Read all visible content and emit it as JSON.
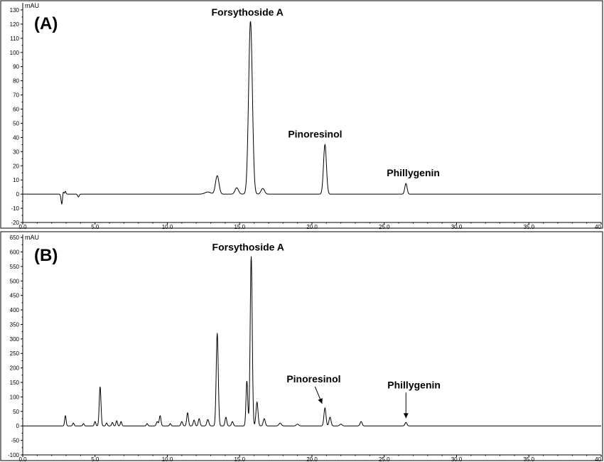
{
  "chart_data": [
    {
      "type": "line",
      "panel_label": "(A)",
      "ylabel": "mAU",
      "xlim": [
        0,
        40
      ],
      "ylim": [
        -20,
        135
      ],
      "yticks": [
        -20,
        -10,
        0,
        10,
        20,
        30,
        40,
        50,
        60,
        70,
        80,
        90,
        100,
        110,
        120,
        130
      ],
      "xticks": [
        0,
        5,
        10,
        15,
        20,
        25,
        30,
        35,
        40
      ],
      "xtick_labels": [
        "0.0",
        "5.0",
        "10.0",
        "15.0",
        "20.0",
        "25.0",
        "30.0",
        "35.0",
        "40"
      ],
      "baseline": 0,
      "peaks": [
        {
          "x": 2.7,
          "y": -7,
          "w": 0.05
        },
        {
          "x": 2.8,
          "y": 2,
          "w": 0.04
        },
        {
          "x": 2.95,
          "y": 2,
          "w": 0.04
        },
        {
          "x": 3.85,
          "y": -2,
          "w": 0.05
        },
        {
          "x": 12.8,
          "y": 1.5,
          "w": 0.2
        },
        {
          "x": 13.45,
          "y": 13,
          "w": 0.12
        },
        {
          "x": 14.8,
          "y": 4.5,
          "w": 0.12
        },
        {
          "x": 15.75,
          "y": 122,
          "w": 0.13
        },
        {
          "x": 16.6,
          "y": 4,
          "w": 0.12
        },
        {
          "x": 20.9,
          "y": 35,
          "w": 0.1
        },
        {
          "x": 26.5,
          "y": 7.5,
          "w": 0.08
        }
      ],
      "annotations": [
        {
          "text": "Forsythoside A",
          "x": 15.75,
          "y": 122
        },
        {
          "text": "Pinoresinol",
          "x": 20.9,
          "y": 35
        },
        {
          "text": "Phillygenin",
          "x": 26.5,
          "y": 7.5
        }
      ]
    },
    {
      "type": "line",
      "panel_label": "(B)",
      "ylabel": "mAU",
      "xlim": [
        0,
        40
      ],
      "ylim": [
        -100,
        660
      ],
      "yticks": [
        -100,
        -50,
        0,
        50,
        100,
        150,
        200,
        250,
        300,
        350,
        400,
        450,
        500,
        550,
        600,
        650
      ],
      "xticks": [
        0,
        5,
        10,
        15,
        20,
        25,
        30,
        35,
        40
      ],
      "xtick_labels": [
        "0.0",
        "5.0",
        "10.0",
        "15.0",
        "20.0",
        "25.0",
        "30.0",
        "35.0",
        "40"
      ],
      "baseline": 0,
      "peaks": [
        {
          "x": 2.95,
          "y": 35,
          "w": 0.05
        },
        {
          "x": 3.5,
          "y": 10,
          "w": 0.05
        },
        {
          "x": 4.2,
          "y": 8,
          "w": 0.05
        },
        {
          "x": 5.0,
          "y": 15,
          "w": 0.05
        },
        {
          "x": 5.35,
          "y": 135,
          "w": 0.06
        },
        {
          "x": 5.8,
          "y": 10,
          "w": 0.05
        },
        {
          "x": 6.2,
          "y": 12,
          "w": 0.05
        },
        {
          "x": 6.5,
          "y": 18,
          "w": 0.05
        },
        {
          "x": 6.8,
          "y": 15,
          "w": 0.05
        },
        {
          "x": 8.6,
          "y": 8,
          "w": 0.05
        },
        {
          "x": 9.3,
          "y": 15,
          "w": 0.06
        },
        {
          "x": 9.5,
          "y": 35,
          "w": 0.06
        },
        {
          "x": 10.2,
          "y": 8,
          "w": 0.05
        },
        {
          "x": 11.0,
          "y": 15,
          "w": 0.06
        },
        {
          "x": 11.4,
          "y": 45,
          "w": 0.06
        },
        {
          "x": 11.85,
          "y": 20,
          "w": 0.06
        },
        {
          "x": 12.2,
          "y": 25,
          "w": 0.06
        },
        {
          "x": 12.8,
          "y": 22,
          "w": 0.07
        },
        {
          "x": 13.45,
          "y": 320,
          "w": 0.07
        },
        {
          "x": 14.05,
          "y": 30,
          "w": 0.06
        },
        {
          "x": 14.5,
          "y": 15,
          "w": 0.06
        },
        {
          "x": 15.5,
          "y": 155,
          "w": 0.06
        },
        {
          "x": 15.8,
          "y": 585,
          "w": 0.07
        },
        {
          "x": 16.2,
          "y": 82,
          "w": 0.07
        },
        {
          "x": 16.7,
          "y": 25,
          "w": 0.07
        },
        {
          "x": 17.8,
          "y": 10,
          "w": 0.08
        },
        {
          "x": 19.0,
          "y": 6,
          "w": 0.08
        },
        {
          "x": 20.9,
          "y": 62,
          "w": 0.07
        },
        {
          "x": 21.25,
          "y": 30,
          "w": 0.07
        },
        {
          "x": 22.0,
          "y": 6,
          "w": 0.08
        },
        {
          "x": 23.4,
          "y": 15,
          "w": 0.07
        },
        {
          "x": 26.5,
          "y": 12,
          "w": 0.07
        }
      ],
      "annotations": [
        {
          "text": "Forsythoside A",
          "x": 15.8,
          "y": 585
        },
        {
          "text": "Pinoresinol",
          "x": 20.9,
          "y": 62,
          "arrow": true
        },
        {
          "text": "Phillygenin",
          "x": 26.5,
          "y": 12,
          "arrow": true
        }
      ]
    }
  ]
}
